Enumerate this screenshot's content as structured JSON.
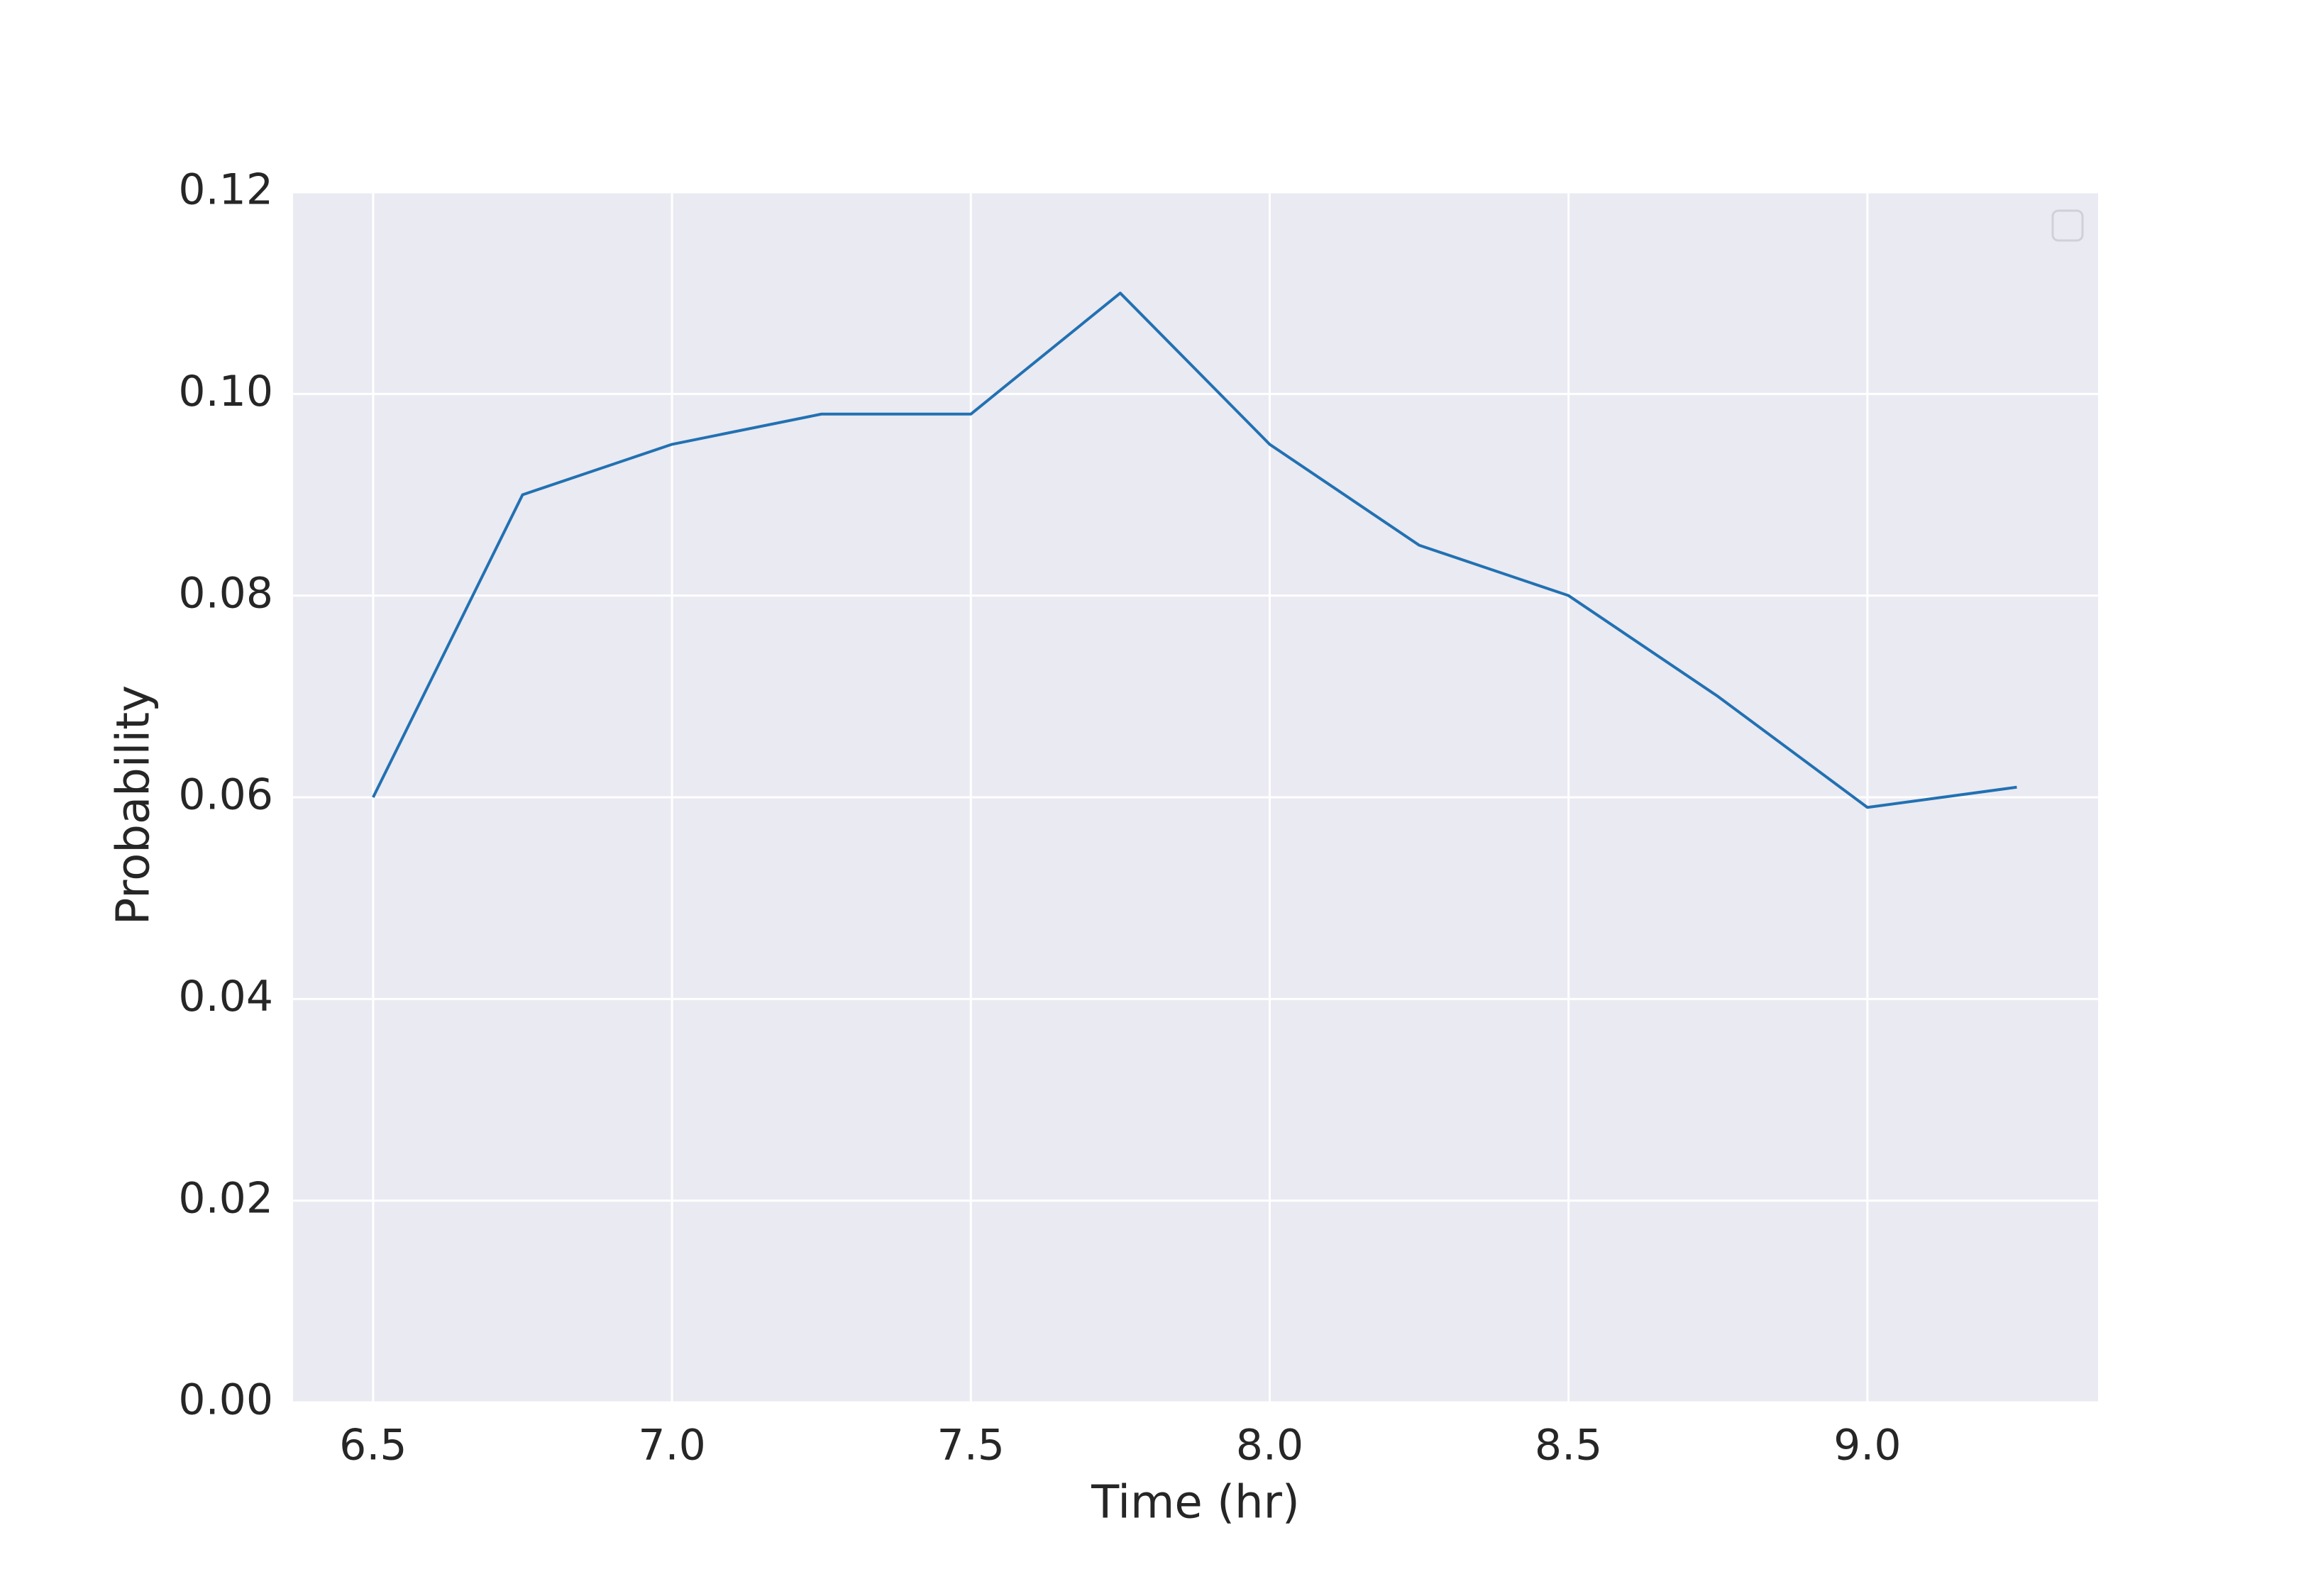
{
  "chart_data": {
    "type": "line",
    "xlabel": "Time (hr)",
    "ylabel": "Probability",
    "x": [
      6.5,
      6.75,
      7.0,
      7.25,
      7.5,
      7.75,
      8.0,
      8.25,
      8.5,
      8.75,
      9.0,
      9.25
    ],
    "series": [
      {
        "color": "#2271b2",
        "values": [
          0.06,
          0.09,
          0.095,
          0.098,
          0.098,
          0.11,
          0.095,
          0.085,
          0.08,
          0.07,
          0.059,
          0.061
        ]
      }
    ],
    "xlim": [
      6.366,
      9.386
    ],
    "xticks": [
      6.5,
      {
        "value": 7.0,
        "label": "7.0"
      },
      7.5,
      {
        "value": 8.0,
        "label": "8.0"
      },
      8.5,
      {
        "value": 9.0,
        "label": "9.0"
      }
    ],
    "ylim": [
      0,
      0.12
    ],
    "yticks": [
      {
        "value": 0,
        "label": "0.00"
      },
      0.02,
      0.04,
      0.06,
      0.08,
      {
        "value": 0.1,
        "label": "0.10"
      },
      0.12
    ],
    "grid": true,
    "legend": "upper right"
  }
}
